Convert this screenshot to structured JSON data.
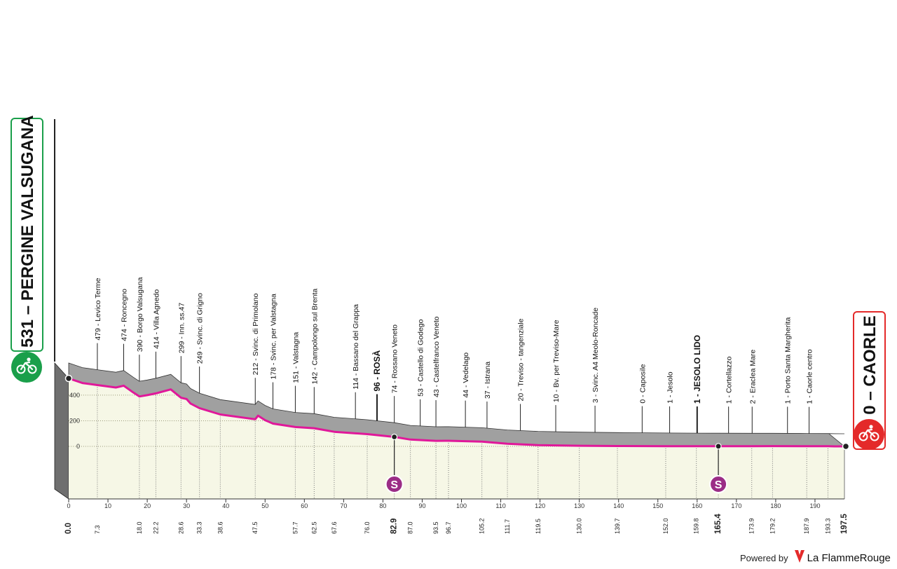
{
  "start": {
    "name": "PERGINE VALSUGANA",
    "altitude": 531,
    "label": "531 – PERGINE VALSUGANA",
    "icon": "cyclist-icon",
    "color": "#1a9f4a"
  },
  "finish": {
    "name": "CAORLE",
    "altitude": 0,
    "label": "0 – CAORLE",
    "icon": "cyclist-icon",
    "color": "#e42a2a"
  },
  "footer": {
    "powered_by": "Powered by",
    "brand": "La FlammeRouge",
    "brand_icon": "flame-rouge-logo-icon",
    "brand_color": "#e42a2a"
  },
  "chart_data": {
    "type": "area",
    "xlabel": "",
    "ylabel": "",
    "xlim": [
      0,
      197.5
    ],
    "ylim": [
      0,
      531
    ],
    "y_ticks": [
      0,
      200,
      400
    ],
    "y_tick_labels": [
      "0",
      "200",
      "400"
    ],
    "x_ticks": [
      0,
      10,
      20,
      30,
      40,
      50,
      60,
      70,
      80,
      90,
      100,
      110,
      120,
      130,
      140,
      150,
      160,
      170,
      180,
      190
    ],
    "x_tick_labels": [
      "0",
      "10",
      "20",
      "30",
      "40",
      "50",
      "60",
      "70",
      "80",
      "90",
      "100",
      "110",
      "120",
      "130",
      "140",
      "150",
      "160",
      "170",
      "180",
      "190"
    ],
    "fill_color": "#f6f7e6",
    "profile_color": "#a0a0a0",
    "route_color": "#e0189a",
    "profile": {
      "x": [
        0.0,
        3.5,
        7.3,
        12.0,
        14.0,
        16.5,
        18.0,
        20.0,
        22.2,
        26.0,
        28.6,
        30.0,
        31.0,
        33.3,
        38.6,
        47.5,
        48.2,
        50.0,
        52.0,
        57.7,
        62.5,
        67.6,
        76.0,
        82.9,
        87.0,
        93.5,
        96.7,
        105.2,
        111.7,
        119.5,
        130.0,
        139.7,
        152.0,
        159.8,
        165.4,
        173.9,
        179.2,
        187.9,
        193.3,
        195.0,
        197.5
      ],
      "y": [
        531,
        495,
        479,
        460,
        474,
        420,
        390,
        400,
        414,
        445,
        380,
        370,
        335,
        299,
        249,
        212,
        240,
        205,
        178,
        151,
        142,
        114,
        96,
        74,
        53,
        43,
        44,
        37,
        20,
        10,
        5,
        3,
        1,
        1,
        1,
        1,
        2,
        1,
        1,
        0,
        0
      ]
    },
    "places": [
      {
        "km": 7.3,
        "alt": 479,
        "label": "479 - Levico Terme"
      },
      {
        "km": 14.0,
        "alt": 474,
        "label": "474 - Roncegno"
      },
      {
        "km": 18.0,
        "alt": 390,
        "label": "390 - Borgo Valsugana"
      },
      {
        "km": 22.2,
        "alt": 414,
        "label": "414 - Villa Agnedo"
      },
      {
        "km": 28.6,
        "alt": 299,
        "label": "299 - Inn. ss.47"
      },
      {
        "km": 33.3,
        "alt": 249,
        "label": "249 - Svinc. di Grigno"
      },
      {
        "km": 47.5,
        "alt": 212,
        "label": "212 - Svinc. di Primolano"
      },
      {
        "km": 52.0,
        "alt": 178,
        "label": "178 - Svinc. per Valstagna"
      },
      {
        "km": 57.7,
        "alt": 151,
        "label": "151 - Valstagna"
      },
      {
        "km": 62.5,
        "alt": 142,
        "label": "142 - Campolongo sul Brenta"
      },
      {
        "km": 73.0,
        "alt": 114,
        "label": "114 - Bassano del Grappa"
      },
      {
        "km": 78.5,
        "alt": 96,
        "label": "96 - ROSÀ",
        "bold": true
      },
      {
        "km": 82.9,
        "alt": 74,
        "label": "74 - Rossano Veneto"
      },
      {
        "km": 89.5,
        "alt": 53,
        "label": "53 - Castello di Godego"
      },
      {
        "km": 93.5,
        "alt": 43,
        "label": "43 - Castelfranco Veneto"
      },
      {
        "km": 101.0,
        "alt": 44,
        "label": "44 - Vedelago"
      },
      {
        "km": 106.5,
        "alt": 37,
        "label": "37 - Istrana"
      },
      {
        "km": 115.0,
        "alt": 20,
        "label": "20 - Treviso - tangenziale"
      },
      {
        "km": 124.0,
        "alt": 10,
        "label": "10 - Bv. per Treviso-Mare"
      },
      {
        "km": 134.0,
        "alt": 3,
        "label": "3 - Svinc. A4 Meolo-Roncade"
      },
      {
        "km": 146.0,
        "alt": 0,
        "label": "0 - Caposile"
      },
      {
        "km": 153.0,
        "alt": 1,
        "label": "1 - Jesolo"
      },
      {
        "km": 160.0,
        "alt": 1,
        "label": "1 - JESOLO LIDO",
        "bold": true
      },
      {
        "km": 168.0,
        "alt": 1,
        "label": "1 - Cortellazzo"
      },
      {
        "km": 174.0,
        "alt": 2,
        "label": "2 - Eraclea Mare"
      },
      {
        "km": 183.0,
        "alt": 1,
        "label": "1 - Porto Santa Margherita"
      },
      {
        "km": 188.5,
        "alt": 1,
        "label": "1 - Caorle centro"
      }
    ],
    "km_marks": [
      {
        "km": 0.0,
        "label": "0.0",
        "bold": true
      },
      {
        "km": 7.3,
        "label": "7.3"
      },
      {
        "km": 18.0,
        "label": "18.0"
      },
      {
        "km": 22.2,
        "label": "22.2"
      },
      {
        "km": 28.6,
        "label": "28.6"
      },
      {
        "km": 33.3,
        "label": "33.3"
      },
      {
        "km": 38.6,
        "label": "38.6"
      },
      {
        "km": 47.5,
        "label": "47.5"
      },
      {
        "km": 57.7,
        "label": "57.7"
      },
      {
        "km": 62.5,
        "label": "62.5"
      },
      {
        "km": 67.6,
        "label": "67.6"
      },
      {
        "km": 76.0,
        "label": "76.0"
      },
      {
        "km": 82.9,
        "label": "82.9",
        "bold": true
      },
      {
        "km": 87.0,
        "label": "87.0"
      },
      {
        "km": 93.5,
        "label": "93.5"
      },
      {
        "km": 96.7,
        "label": "96.7"
      },
      {
        "km": 105.2,
        "label": "105.2"
      },
      {
        "km": 111.7,
        "label": "111.7"
      },
      {
        "km": 119.5,
        "label": "119.5"
      },
      {
        "km": 130.0,
        "label": "130.0"
      },
      {
        "km": 139.7,
        "label": "139.7"
      },
      {
        "km": 152.0,
        "label": "152.0"
      },
      {
        "km": 159.8,
        "label": "159.8"
      },
      {
        "km": 165.4,
        "label": "165.4",
        "bold": true
      },
      {
        "km": 173.9,
        "label": "173.9"
      },
      {
        "km": 179.2,
        "label": "179.2"
      },
      {
        "km": 187.9,
        "label": "187.9"
      },
      {
        "km": 193.3,
        "label": "193.3"
      },
      {
        "km": 197.5,
        "label": "197.5",
        "bold": true
      }
    ],
    "sprints": [
      {
        "km": 82.9,
        "label": "S",
        "color": "#9b2d86"
      },
      {
        "km": 165.4,
        "label": "S",
        "color": "#9b2d86"
      }
    ]
  }
}
